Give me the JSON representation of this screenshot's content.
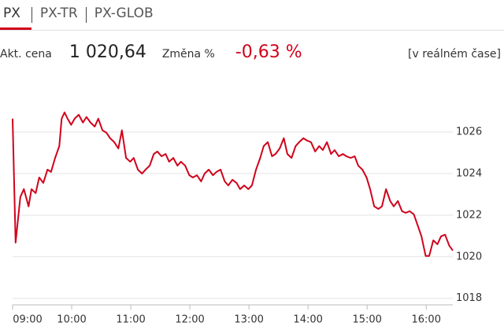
{
  "tabs": {
    "items": [
      "PX",
      "PX-TR",
      "PX-GLOB"
    ],
    "active": 0
  },
  "quote": {
    "price_label": "Akt. cena",
    "price": "1 020,64",
    "change_label": "Změna %",
    "change": "-0,63 %",
    "status": "[v reálném čase]"
  },
  "chart_data": {
    "type": "line",
    "color": "#d0021b",
    "grid": true,
    "xlim": [
      9,
      16.45
    ],
    "xticks": [
      {
        "value": 9,
        "label": "09:00"
      },
      {
        "value": 10,
        "label": "10:00"
      },
      {
        "value": 11,
        "label": "11:00"
      },
      {
        "value": 12,
        "label": "12:00"
      },
      {
        "value": 13,
        "label": "13:00"
      },
      {
        "value": 14,
        "label": "14:00"
      },
      {
        "value": 15,
        "label": "15:00"
      },
      {
        "value": 16,
        "label": "16:00"
      }
    ],
    "ylim": [
      1017.8,
      1028
    ],
    "yticks": [
      1018,
      1020,
      1022,
      1024,
      1026
    ],
    "x": [
      9.0,
      9.05,
      9.13,
      9.19,
      9.27,
      9.32,
      9.39,
      9.45,
      9.52,
      9.59,
      9.65,
      9.72,
      9.79,
      9.83,
      9.88,
      9.93,
      9.99,
      10.05,
      10.12,
      10.19,
      10.25,
      10.32,
      10.39,
      10.45,
      10.52,
      10.59,
      10.65,
      10.72,
      10.79,
      10.85,
      10.92,
      10.99,
      11.05,
      11.12,
      11.19,
      11.25,
      11.32,
      11.39,
      11.45,
      11.52,
      11.59,
      11.65,
      11.72,
      11.79,
      11.85,
      11.92,
      11.99,
      12.05,
      12.12,
      12.19,
      12.25,
      12.32,
      12.39,
      12.45,
      12.52,
      12.59,
      12.65,
      12.72,
      12.79,
      12.85,
      12.92,
      12.99,
      13.05,
      13.12,
      13.19,
      13.25,
      13.32,
      13.39,
      13.45,
      13.52,
      13.59,
      13.65,
      13.72,
      13.79,
      13.85,
      13.92,
      13.99,
      14.05,
      14.12,
      14.19,
      14.25,
      14.32,
      14.39,
      14.45,
      14.52,
      14.59,
      14.65,
      14.72,
      14.79,
      14.85,
      14.92,
      14.99,
      15.05,
      15.12,
      15.19,
      15.25,
      15.32,
      15.39,
      15.45,
      15.52,
      15.59,
      15.65,
      15.72,
      15.79,
      15.85,
      15.92,
      15.99,
      16.05,
      16.12,
      16.19,
      16.25,
      16.32,
      16.39,
      16.45
    ],
    "values": [
      1026.64,
      1020.68,
      1022.87,
      1023.25,
      1022.42,
      1023.25,
      1023.06,
      1023.81,
      1023.55,
      1024.19,
      1024.08,
      1024.75,
      1025.32,
      1026.64,
      1026.94,
      1026.64,
      1026.34,
      1026.64,
      1026.83,
      1026.45,
      1026.72,
      1026.45,
      1026.26,
      1026.64,
      1026.08,
      1025.96,
      1025.7,
      1025.51,
      1025.21,
      1026.08,
      1024.75,
      1024.57,
      1024.75,
      1024.19,
      1024.0,
      1024.19,
      1024.38,
      1024.94,
      1025.06,
      1024.83,
      1024.94,
      1024.57,
      1024.75,
      1024.38,
      1024.57,
      1024.38,
      1023.92,
      1023.81,
      1023.92,
      1023.62,
      1024.0,
      1024.19,
      1023.92,
      1024.08,
      1024.19,
      1023.62,
      1023.43,
      1023.7,
      1023.55,
      1023.25,
      1023.43,
      1023.25,
      1023.43,
      1024.19,
      1024.75,
      1025.32,
      1025.51,
      1024.83,
      1024.94,
      1025.21,
      1025.7,
      1024.94,
      1024.75,
      1025.32,
      1025.51,
      1025.7,
      1025.58,
      1025.51,
      1025.06,
      1025.32,
      1025.13,
      1025.51,
      1024.94,
      1025.13,
      1024.83,
      1024.94,
      1024.83,
      1024.75,
      1024.83,
      1024.38,
      1024.19,
      1023.81,
      1023.25,
      1022.42,
      1022.3,
      1022.42,
      1023.25,
      1022.68,
      1022.42,
      1022.68,
      1022.19,
      1022.11,
      1022.19,
      1022.04,
      1021.55,
      1020.98,
      1020.04,
      1020.04,
      1020.79,
      1020.6,
      1020.98,
      1021.06,
      1020.53,
      1020.3
    ]
  }
}
